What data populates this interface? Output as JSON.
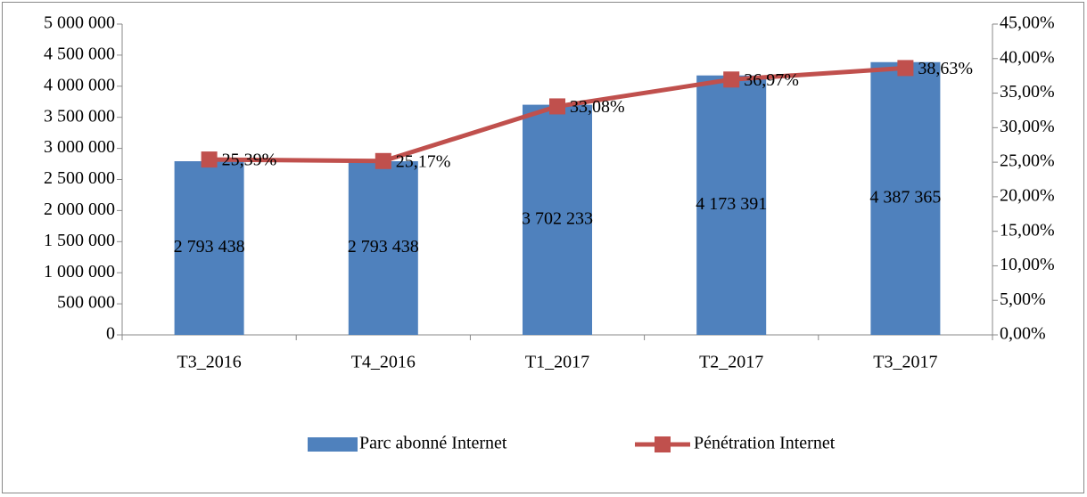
{
  "chart_data": {
    "type": "bar_line",
    "categories": [
      "T3_2016",
      "T4_2016",
      "T1_2017",
      "T2_2017",
      "T3_2017"
    ],
    "series": [
      {
        "name": "Parc abonné Internet",
        "type": "bar",
        "color": "#4f81bd",
        "values": [
          2793438,
          2793438,
          3702233,
          4173391,
          4387365
        ],
        "value_labels": [
          "2 793 438",
          "2 793 438",
          "3 702 233",
          "4 173 391",
          "4 387 365"
        ]
      },
      {
        "name": "Pénétration Internet",
        "type": "line",
        "axis": "y2",
        "color": "#c0504d",
        "values": [
          25.39,
          25.17,
          33.08,
          36.97,
          38.63
        ],
        "value_labels": [
          "25,39%",
          "25,17%",
          "33,08%",
          "36,97%",
          "38,63%"
        ]
      }
    ],
    "ylim": [
      0,
      5000000
    ],
    "yticks": [
      0,
      {
        "value": 500000,
        "label": "500 000"
      },
      {
        "value": 1000000,
        "label": "1 000 000"
      },
      {
        "value": 1500000,
        "label": "1 500 000"
      },
      {
        "value": 2000000,
        "label": "2 000 000"
      },
      {
        "value": 2500000,
        "label": "2 500 000"
      },
      {
        "value": 3000000,
        "label": "3 000 000"
      },
      {
        "value": 3500000,
        "label": "3 500 000"
      },
      {
        "value": 4000000,
        "label": "4 000 000"
      },
      {
        "value": 4500000,
        "label": "4 500 000"
      },
      {
        "value": 5000000,
        "label": "5 000 000"
      }
    ],
    "y2lim": [
      0,
      45
    ],
    "y2ticks": [
      {
        "value": 0,
        "label": "0,00%"
      },
      {
        "value": 5,
        "label": "5,00%"
      },
      {
        "value": 10,
        "label": "10,00%"
      },
      {
        "value": 15,
        "label": "15,00%"
      },
      {
        "value": 20,
        "label": "20,00%"
      },
      {
        "value": 25,
        "label": "25,00%"
      },
      {
        "value": 30,
        "label": "30,00%"
      },
      {
        "value": 35,
        "label": "35,00%"
      },
      {
        "value": 40,
        "label": "40,00%"
      },
      {
        "value": 45,
        "label": "45,00%"
      }
    ],
    "legend": "bottom"
  }
}
